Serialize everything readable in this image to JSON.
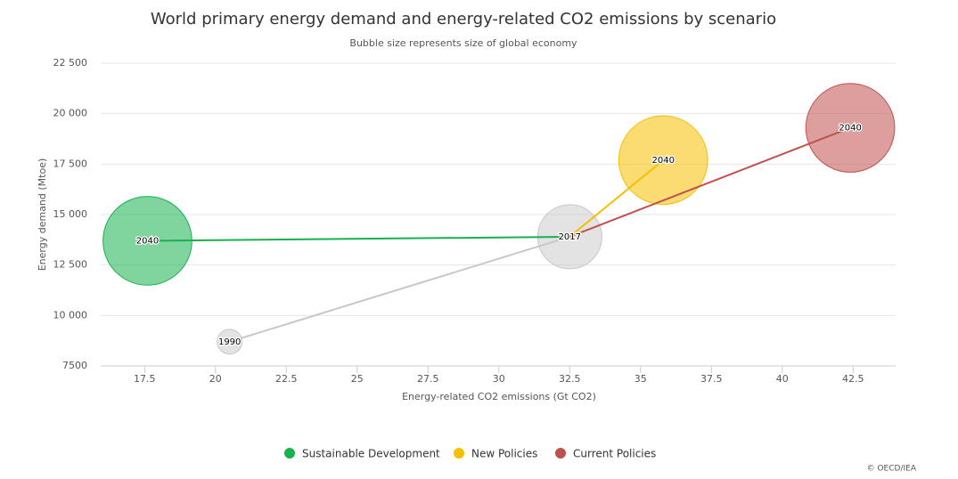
{
  "chart_data": {
    "type": "bubble",
    "title": "World primary energy demand and energy-related CO2 emissions by scenario",
    "subtitle": "Bubble size represents size of global economy",
    "x_label": "Energy-related CO2 emissions (Gt CO2)",
    "y_label": "Energy demand (Mtoe)",
    "credit": "© OECD/IEA",
    "xlim": [
      15.95,
      44
    ],
    "ylim": [
      7500,
      22500
    ],
    "xticks": [
      17.5,
      20,
      22.5,
      25,
      27.5,
      30,
      32.5,
      35,
      37.5,
      40,
      42.5
    ],
    "yticks": [
      7500,
      {
        "value": 10000,
        "label": "10 000"
      },
      {
        "value": 12500,
        "label": "12 500"
      },
      {
        "value": 15000,
        "label": "15 000"
      },
      {
        "value": 17500,
        "label": "17 500"
      },
      {
        "value": 20000,
        "label": "20 000"
      },
      {
        "value": 22500,
        "label": "22 500"
      }
    ],
    "grid": true,
    "series": [
      {
        "color": "#c8c8c8",
        "x": [
          20.5,
          32.5
        ],
        "y": [
          8700,
          13900
        ],
        "size": [
          18,
          120
        ],
        "labels": [
          "1990",
          "2017"
        ]
      },
      {
        "name": "Sustainable Development",
        "color": "#17b14f",
        "x": [
          17.6
        ],
        "y": [
          13700
        ],
        "size": [
          230
        ],
        "labels": [
          "2040"
        ]
      },
      {
        "name": "New Policies",
        "color": "#f5c000",
        "x": [
          35.8
        ],
        "y": [
          17700
        ],
        "size": [
          230
        ],
        "labels": [
          "2040"
        ]
      },
      {
        "name": "Current Policies",
        "color": "#c0504d",
        "x": [
          42.4
        ],
        "y": [
          19300
        ],
        "size": [
          230
        ],
        "labels": [
          "2040"
        ]
      }
    ]
  }
}
